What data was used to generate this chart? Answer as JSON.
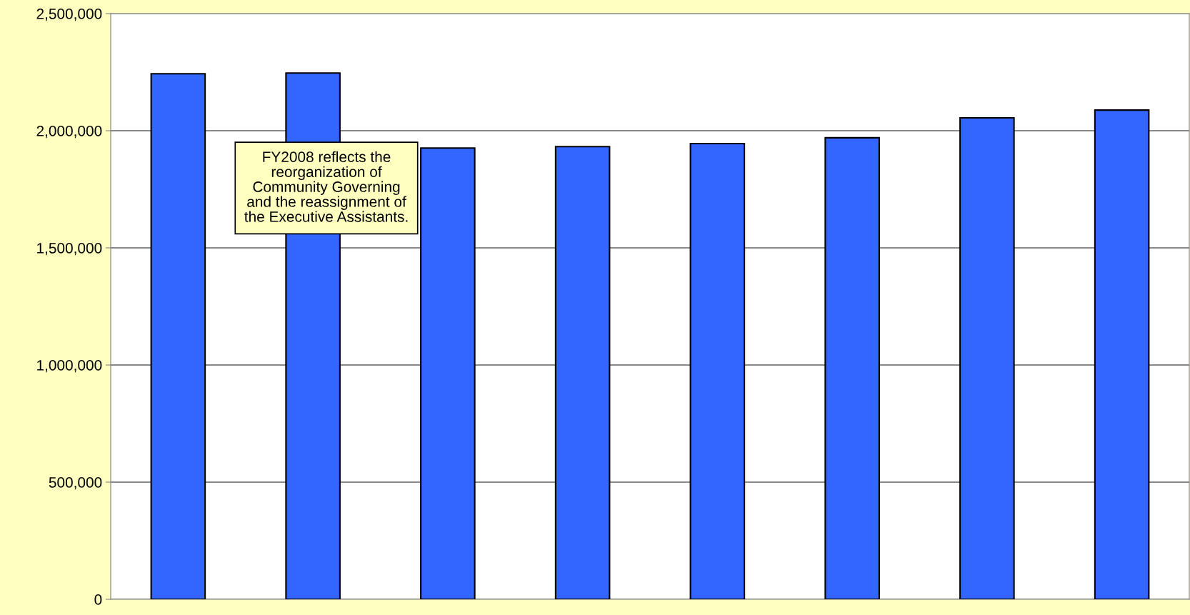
{
  "chart_data": {
    "type": "bar",
    "categories": [
      null,
      null,
      null,
      null,
      null,
      null,
      null,
      null
    ],
    "values": [
      2243000,
      2246000,
      1926000,
      1932000,
      1945000,
      1970000,
      2055000,
      2088000
    ],
    "color": "#3366ff",
    "ylim": [
      0,
      2500000
    ],
    "yticks": [
      {
        "value": 0,
        "label": "0"
      },
      {
        "value": 500000,
        "label": "500,000"
      },
      {
        "value": 1000000,
        "label": "1,000,000"
      },
      {
        "value": 1500000,
        "label": "1,500,000"
      },
      {
        "value": 2000000,
        "label": "2,000,000"
      },
      {
        "value": 2500000,
        "label": "2,500,000"
      }
    ],
    "grid": "y",
    "annotations": [
      "FY2008 reflects the\nreorganization of\nCommunity Governing\nand the reassignment of\nthe Executive Assistants."
    ]
  }
}
